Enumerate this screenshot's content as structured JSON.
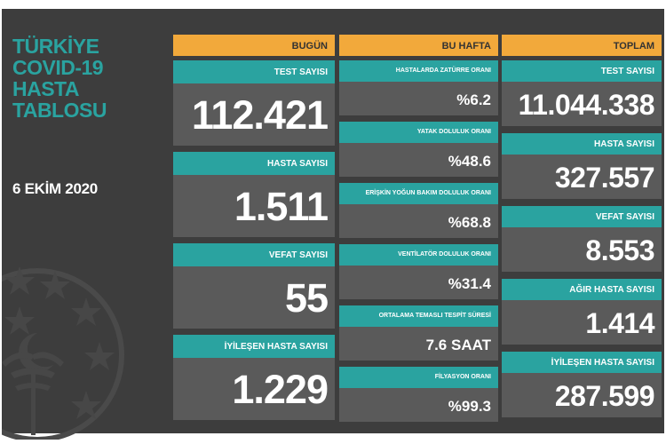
{
  "side": {
    "title_lines": [
      "TÜRKİYE",
      "COVID-19",
      "HASTA",
      "TABLOSU"
    ],
    "date": "6 EKİM 2020"
  },
  "today": {
    "header": "BUGÜN",
    "items": [
      {
        "label": "TEST SAYISI",
        "value": "112.421"
      },
      {
        "label": "HASTA SAYISI",
        "value": "1.511"
      },
      {
        "label": "VEFAT SAYISI",
        "value": "55"
      },
      {
        "label": "İYİLEŞEN HASTA SAYISI",
        "value": "1.229"
      }
    ]
  },
  "week": {
    "header": "BU HAFTA",
    "items": [
      {
        "label": "HASTALARDA ZATÜRRE ORANI",
        "value": "%6.2"
      },
      {
        "label": "YATAK DOLULUK ORANI",
        "value": "%48.6"
      },
      {
        "label": "ERİŞKİN YOĞUN BAKIM DOLULUK ORANI",
        "value": "%68.8"
      },
      {
        "label": "VENTİLATÖR DOLULUK ORANI",
        "value": "%31.4"
      },
      {
        "label": "ORTALAMA TEMASLI TESPİT SÜRESİ",
        "value": "7.6 SAAT"
      },
      {
        "label": "FİLYASYON ORANI",
        "value": "%99.3"
      }
    ]
  },
  "total": {
    "header": "TOPLAM",
    "items": [
      {
        "label": "TEST SAYISI",
        "value": "11.044.338"
      },
      {
        "label": "HASTA SAYISI",
        "value": "327.557"
      },
      {
        "label": "VEFAT SAYISI",
        "value": "8.553"
      },
      {
        "label": "AĞIR HASTA SAYISI",
        "value": "1.414"
      },
      {
        "label": "İYİLEŞEN HASTA SAYISI",
        "value": "287.599"
      }
    ]
  }
}
